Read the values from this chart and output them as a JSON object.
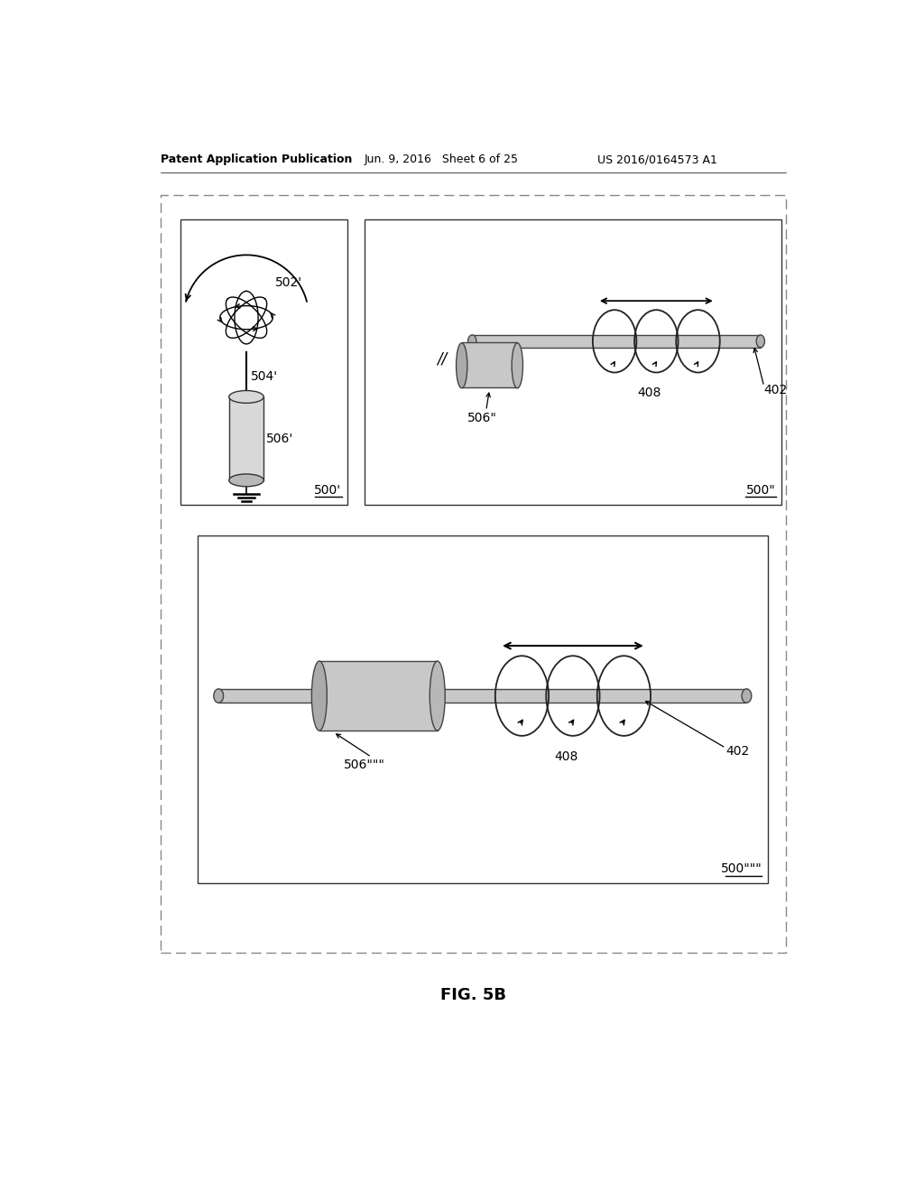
{
  "title": "FIG. 5B",
  "header_left": "Patent Application Publication",
  "header_mid": "Jun. 9, 2016   Sheet 6 of 25",
  "header_right": "US 2016/0164573 A1",
  "bg_color": "#ffffff",
  "label_color": "#000000",
  "labels": {
    "500_prime": "500'",
    "502_prime": "502'",
    "504_prime": "504'",
    "506_prime": "506'",
    "500_double": "500\"",
    "506_double": "506\"",
    "408_top": "408",
    "402_top": "402",
    "500_triple": "500\"\"\"",
    "506_triple": "506\"\"\"",
    "408_bot": "408",
    "402_bot": "402"
  }
}
